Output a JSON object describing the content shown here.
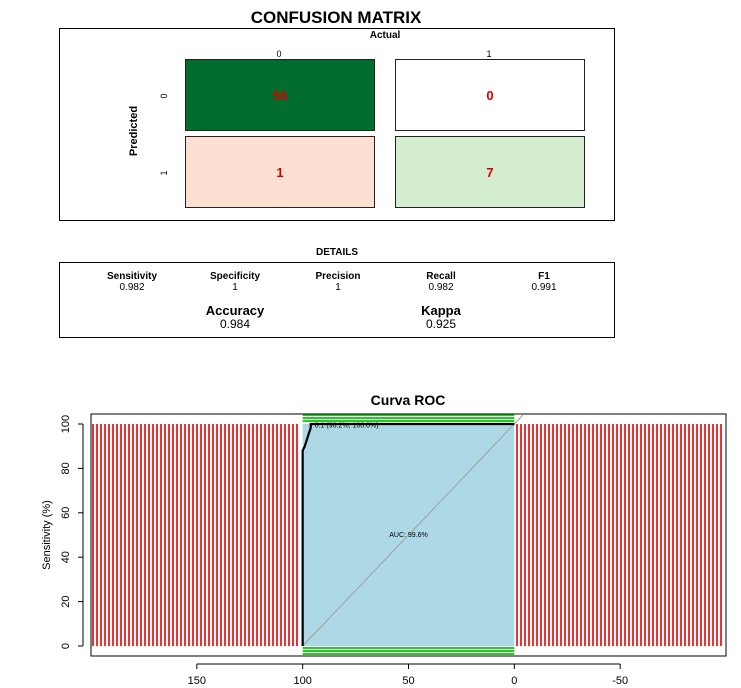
{
  "confusion_matrix": {
    "title": "CONFUSION MATRIX",
    "actual_label": "Actual",
    "predicted_label": "Predicted",
    "col_labels": [
      "0",
      "1"
    ],
    "row_labels": [
      "0",
      "1"
    ],
    "cells": [
      {
        "value": "56",
        "fill": "#006d2c"
      },
      {
        "value": "0",
        "fill": "#ffffff"
      },
      {
        "value": "1",
        "fill": "#fde0d2"
      },
      {
        "value": "7",
        "fill": "#d4edcf"
      }
    ]
  },
  "details": {
    "title": "DETAILS",
    "metrics": [
      {
        "name": "Sensitivity",
        "value": "0.982"
      },
      {
        "name": "Specificity",
        "value": "1"
      },
      {
        "name": "Precision",
        "value": "1"
      },
      {
        "name": "Recall",
        "value": "0.982"
      },
      {
        "name": "F1",
        "value": "0.991"
      }
    ],
    "summary": [
      {
        "name": "Accuracy",
        "value": "0.984"
      },
      {
        "name": "Kappa",
        "value": "0.925"
      }
    ]
  },
  "chart_data": [
    {
      "type": "table",
      "title": "CONFUSION MATRIX",
      "columns_label": "Actual",
      "rows_label": "Predicted",
      "columns": [
        "0",
        "1"
      ],
      "rows": [
        "0",
        "1"
      ],
      "values": [
        [
          56,
          0
        ],
        [
          1,
          7
        ]
      ]
    },
    {
      "type": "line",
      "title": "Curva ROC",
      "xlabel": "",
      "ylabel": "Sensitivity (%)",
      "xlim": [
        200,
        -100
      ],
      "ylim": [
        0,
        100
      ],
      "x_reversed": true,
      "x_ticks": [
        150,
        100,
        50,
        0,
        -50
      ],
      "y_ticks": [
        0,
        20,
        40,
        60,
        80,
        100
      ],
      "auc_label": "AUC: 99.6%",
      "threshold_label": "0.1 (96.2%, 100.0%)",
      "curve": {
        "x": [
          100,
          100,
          100,
          100,
          99,
          98,
          97,
          96.2,
          96.2,
          0
        ],
        "y": [
          0,
          80,
          86,
          88,
          90,
          93,
          96,
          98.2,
          100,
          100
        ]
      },
      "ci_shade": {
        "x_range": [
          100,
          0
        ],
        "y_range": [
          0,
          100
        ],
        "color": "#add8e6"
      },
      "diagonal_color": "#a0a0a0",
      "curve_color": "#000000",
      "side_bar_color": "#e00000",
      "ci_band_color": "#22cc22"
    }
  ]
}
